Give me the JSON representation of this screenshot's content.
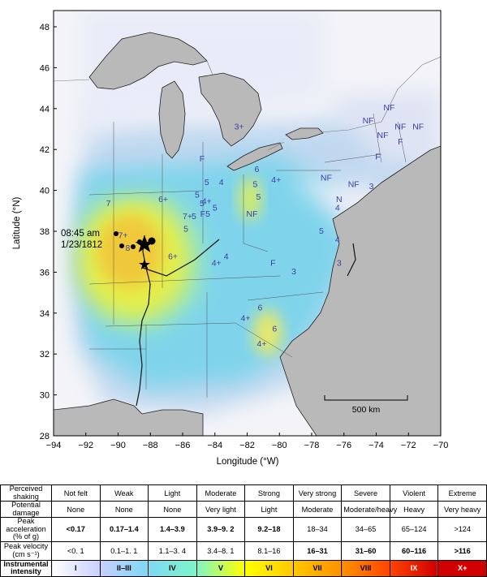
{
  "map": {
    "y_axis_title": "Latitude (°N)",
    "x_axis_title": "Longitude (°W)",
    "x_ticks": [
      "−94",
      "−92",
      "−90",
      "−88",
      "−86",
      "−84",
      "−82",
      "−80",
      "−78",
      "−76",
      "−74",
      "−72",
      "−70"
    ],
    "y_ticks": [
      "48",
      "46",
      "44",
      "42",
      "40",
      "38",
      "36",
      "34",
      "32",
      "30",
      "28"
    ],
    "event_time": "08:45 am",
    "event_date": "1/23/1812",
    "scale_label": "500 km",
    "intensity_labels": [
      {
        "text": "3+",
        "lon": -82.5,
        "lat": 42.4
      },
      {
        "text": "NF",
        "lon": -74.5,
        "lat": 42.7
      },
      {
        "text": "NF",
        "lon": -73.2,
        "lat": 43.3
      },
      {
        "text": "NF",
        "lon": -72.5,
        "lat": 42.4
      },
      {
        "text": "NF",
        "lon": -71.4,
        "lat": 42.4
      },
      {
        "text": "NF",
        "lon": -73.6,
        "lat": 42.0
      },
      {
        "text": "F",
        "lon": -72.5,
        "lat": 41.7
      },
      {
        "text": "F",
        "lon": -73.9,
        "lat": 41.0
      },
      {
        "text": "3",
        "lon": -74.3,
        "lat": 39.6
      },
      {
        "text": "F",
        "lon": -84.8,
        "lat": 40.9
      },
      {
        "text": "NF",
        "lon": -77.1,
        "lat": 40.0
      },
      {
        "text": "NF",
        "lon": -75.4,
        "lat": 39.7
      },
      {
        "text": "N",
        "lon": -76.3,
        "lat": 39.0
      },
      {
        "text": "4",
        "lon": -76.4,
        "lat": 38.6
      },
      {
        "text": "6",
        "lon": -81.4,
        "lat": 40.4
      },
      {
        "text": "5",
        "lon": -81.5,
        "lat": 39.7
      },
      {
        "text": "5",
        "lon": -81.3,
        "lat": 39.1
      },
      {
        "text": "4+",
        "lon": -80.2,
        "lat": 39.9
      },
      {
        "text": "5",
        "lon": -84.5,
        "lat": 39.8
      },
      {
        "text": "4",
        "lon": -83.6,
        "lat": 39.8
      },
      {
        "text": "5",
        "lon": -85.1,
        "lat": 39.2
      },
      {
        "text": "5",
        "lon": -84.8,
        "lat": 38.8
      },
      {
        "text": "4+",
        "lon": -84.5,
        "lat": 38.9
      },
      {
        "text": "5",
        "lon": -84.0,
        "lat": 38.6
      },
      {
        "text": "6+",
        "lon": -87.2,
        "lat": 39.0
      },
      {
        "text": "7+",
        "lon": -85.7,
        "lat": 38.2
      },
      {
        "text": "5",
        "lon": -85.3,
        "lat": 38.2
      },
      {
        "text": "F5",
        "lon": -84.6,
        "lat": 38.3
      },
      {
        "text": "5",
        "lon": -85.8,
        "lat": 37.6
      },
      {
        "text": "NF",
        "lon": -81.7,
        "lat": 38.3
      },
      {
        "text": "5",
        "lon": -77.4,
        "lat": 37.5
      },
      {
        "text": "4",
        "lon": -76.4,
        "lat": 37.1
      },
      {
        "text": "3",
        "lon": -76.3,
        "lat": 36.0
      },
      {
        "text": "6+",
        "lon": -86.6,
        "lat": 36.3
      },
      {
        "text": "4+",
        "lon": -83.9,
        "lat": 36.0
      },
      {
        "text": "4",
        "lon": -83.3,
        "lat": 36.3
      },
      {
        "text": "F",
        "lon": -80.4,
        "lat": 36.0
      },
      {
        "text": "3",
        "lon": -79.1,
        "lat": 35.6
      },
      {
        "text": "7",
        "lon": -90.6,
        "lat": 38.8
      },
      {
        "text": "7+",
        "lon": -89.7,
        "lat": 37.3
      },
      {
        "text": "8",
        "lon": -89.4,
        "lat": 36.7
      },
      {
        "text": "6",
        "lon": -81.2,
        "lat": 33.9
      },
      {
        "text": "4+",
        "lon": -82.1,
        "lat": 33.4
      },
      {
        "text": "6",
        "lon": -80.3,
        "lat": 32.9
      },
      {
        "text": "4+",
        "lon": -81.1,
        "lat": 32.2
      }
    ]
  },
  "legend": {
    "rows": [
      {
        "head": "Perceived shaking",
        "cells": [
          "Not felt",
          "Weak",
          "Light",
          "Moderate",
          "Strong",
          "Very strong",
          "Severe",
          "Violent",
          "Extreme"
        ]
      },
      {
        "head": "Potential damage",
        "cells": [
          "None",
          "None",
          "None",
          "Very light",
          "Light",
          "Moderate",
          "Moderate/heavy",
          "Heavy",
          "Very heavy"
        ]
      },
      {
        "head": "Peak acceleration (% of g)",
        "cells": [
          "<0.17",
          "0.17–1.4",
          "1.4–3.9",
          "3.9–9. 2",
          "9.2–18",
          "18–34",
          "34–65",
          "65–124",
          ">124"
        ]
      },
      {
        "head": "Peak velocity (cm s⁻¹)",
        "cells": [
          "<0. 1",
          "0.1–1. 1",
          "1.1–3. 4",
          "3.4–8. 1",
          "8.1–16",
          "16–31",
          "31–60",
          "60–116",
          ">116"
        ]
      },
      {
        "head": "Instrumental intensity",
        "cells": [
          "I",
          "II–III",
          "IV",
          "V",
          "VI",
          "VII",
          "VIII",
          "IX",
          "X+"
        ]
      }
    ],
    "colors": [
      "#ffffff",
      "#c8cfff",
      "#7fd8f5",
      "#7ef6c8",
      "#ffff00",
      "#ffc800",
      "#ff9100",
      "#ff4400",
      "#d00000"
    ]
  }
}
